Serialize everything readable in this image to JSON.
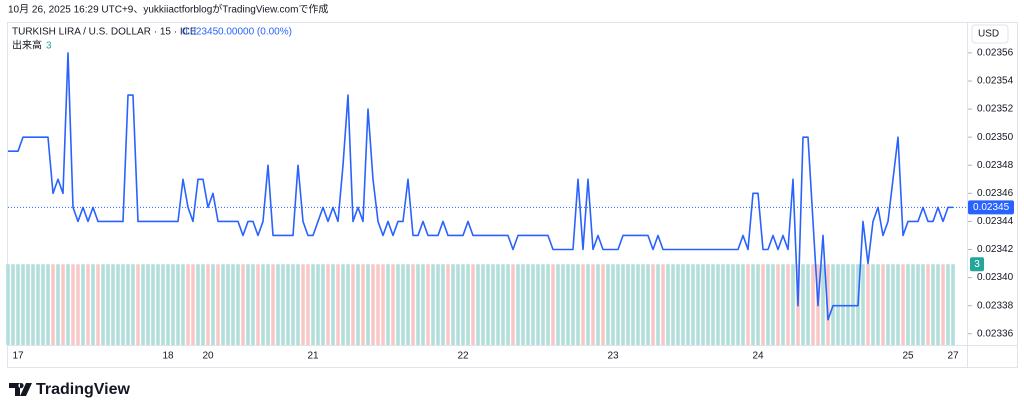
{
  "header": {
    "text": "10月 26, 2025 16:29 UTC+9、yukkiiactforblogがTradingView.comで作成"
  },
  "chart_data": {
    "type": "line",
    "currency": "USD",
    "change": "0.00000 (0.00%)",
    "categories": [
      null,
      null,
      "17",
      null,
      null,
      null,
      null,
      null,
      null,
      null,
      null,
      null,
      null,
      null,
      null,
      null,
      null,
      null,
      null,
      null,
      null,
      null,
      null,
      null,
      null,
      null,
      null,
      null,
      null,
      null,
      null,
      null,
      "18",
      null,
      null,
      null,
      null,
      null,
      null,
      null,
      "20",
      null,
      null,
      null,
      null,
      null,
      null,
      null,
      null,
      null,
      null,
      null,
      null,
      null,
      null,
      null,
      null,
      null,
      null,
      null,
      null,
      "21",
      null,
      null,
      null,
      null,
      null,
      null,
      null,
      null,
      null,
      null,
      null,
      null,
      null,
      null,
      null,
      null,
      null,
      null,
      null,
      null,
      null,
      null,
      null,
      null,
      null,
      null,
      null,
      null,
      null,
      "22",
      null,
      null,
      null,
      null,
      null,
      null,
      null,
      null,
      null,
      null,
      null,
      null,
      null,
      null,
      null,
      null,
      null,
      null,
      null,
      null,
      null,
      null,
      null,
      null,
      null,
      null,
      null,
      null,
      null,
      "23",
      null,
      null,
      null,
      null,
      null,
      null,
      null,
      null,
      null,
      null,
      null,
      null,
      null,
      null,
      null,
      null,
      null,
      null,
      null,
      null,
      null,
      null,
      null,
      null,
      null,
      null,
      null,
      null,
      "24",
      null,
      null,
      null,
      null,
      null,
      null,
      null,
      null,
      null,
      null,
      null,
      null,
      null,
      null,
      null,
      null,
      null,
      null,
      null,
      null,
      null,
      null,
      null,
      null,
      null,
      null,
      null,
      null,
      null,
      "25",
      null,
      null,
      null,
      null,
      null,
      null,
      null,
      null,
      "27"
    ],
    "series": [
      {
        "name": "TURKISH LIRA / U.S. DOLLAR · 15 · ICE",
        "color": "#2962ff",
        "values": [
          0.02349,
          0.02349,
          0.02349,
          0.0235,
          0.0235,
          0.0235,
          0.0235,
          0.0235,
          0.0235,
          0.02346,
          0.02347,
          0.02346,
          0.02356,
          0.02345,
          0.02344,
          0.02345,
          0.02344,
          0.02345,
          0.02344,
          0.02344,
          0.02344,
          0.02344,
          0.02344,
          0.02344,
          0.02353,
          0.02353,
          0.02344,
          0.02344,
          0.02344,
          0.02344,
          0.02344,
          0.02344,
          0.02344,
          0.02344,
          0.02344,
          0.02347,
          0.02345,
          0.02344,
          0.02347,
          0.02347,
          0.02345,
          0.02346,
          0.02344,
          0.02344,
          0.02344,
          0.02344,
          0.02344,
          0.02343,
          0.02344,
          0.02344,
          0.02343,
          0.02344,
          0.02348,
          0.02343,
          0.02343,
          0.02343,
          0.02343,
          0.02343,
          0.02348,
          0.02344,
          0.02343,
          0.02343,
          0.02344,
          0.02345,
          0.02344,
          0.02345,
          0.02344,
          0.02348,
          0.02353,
          0.02344,
          0.02345,
          0.02344,
          0.02352,
          0.02347,
          0.02344,
          0.02343,
          0.02344,
          0.02343,
          0.02344,
          0.02344,
          0.02347,
          0.02343,
          0.02343,
          0.02344,
          0.02343,
          0.02343,
          0.02343,
          0.02344,
          0.02343,
          0.02343,
          0.02343,
          0.02343,
          0.02344,
          0.02343,
          0.02343,
          0.02343,
          0.02343,
          0.02343,
          0.02343,
          0.02343,
          0.02343,
          0.02342,
          0.02343,
          0.02343,
          0.02343,
          0.02343,
          0.02343,
          0.02343,
          0.02343,
          0.02342,
          0.02342,
          0.02342,
          0.02342,
          0.02342,
          0.02347,
          0.02342,
          0.02347,
          0.02342,
          0.02343,
          0.02342,
          0.02342,
          0.02342,
          0.02342,
          0.02343,
          0.02343,
          0.02343,
          0.02343,
          0.02343,
          0.02343,
          0.02342,
          0.02343,
          0.02342,
          0.02342,
          0.02342,
          0.02342,
          0.02342,
          0.02342,
          0.02342,
          0.02342,
          0.02342,
          0.02342,
          0.02342,
          0.02342,
          0.02342,
          0.02342,
          0.02342,
          0.02342,
          0.02343,
          0.02342,
          0.02346,
          0.02346,
          0.02342,
          0.02342,
          0.02343,
          0.02342,
          0.02343,
          0.02342,
          0.02347,
          0.02338,
          0.0235,
          0.0235,
          0.02344,
          0.02338,
          0.02343,
          0.02337,
          0.02338,
          0.02338,
          0.02338,
          0.02338,
          0.02338,
          0.02338,
          0.02344,
          0.02341,
          0.02344,
          0.02345,
          0.02343,
          0.02344,
          0.02347,
          0.0235,
          0.02343,
          0.02344,
          0.02344,
          0.02344,
          0.02345,
          0.02344,
          0.02344,
          0.02345,
          0.02344,
          0.02345,
          0.02345
        ]
      },
      {
        "name": "出来高",
        "axis": "y2",
        "color": "#b2dfdb",
        "down_color": "#f8c8c8",
        "values": [
          3,
          3,
          3,
          3,
          3,
          3,
          3,
          3,
          3,
          3,
          3,
          3,
          3,
          3,
          3,
          3,
          3,
          3,
          3,
          3,
          3,
          3,
          3,
          3,
          3,
          3,
          3,
          3,
          3,
          3,
          3,
          3,
          3,
          3,
          3,
          3,
          3,
          3,
          3,
          3,
          3,
          3,
          3,
          3,
          3,
          3,
          3,
          3,
          3,
          3,
          3,
          3,
          3,
          3,
          3,
          3,
          3,
          3,
          3,
          3,
          3,
          3,
          3,
          3,
          3,
          3,
          3,
          3,
          3,
          3,
          3,
          3,
          3,
          3,
          3,
          3,
          3,
          3,
          3,
          3,
          3,
          3,
          3,
          3,
          3,
          3,
          3,
          3,
          3,
          3,
          3,
          3,
          3,
          3,
          3,
          3,
          3,
          3,
          3,
          3,
          3,
          3,
          3,
          3,
          3,
          3,
          3,
          3,
          3,
          3,
          3,
          3,
          3,
          3,
          3,
          3,
          3,
          3,
          3,
          3,
          3,
          3,
          3,
          3,
          3,
          3,
          3,
          3,
          3,
          3,
          3,
          3,
          3,
          3,
          3,
          3,
          3,
          3,
          3,
          3,
          3,
          3,
          3,
          3,
          3,
          3,
          3,
          3,
          3,
          3,
          3,
          3,
          3,
          3,
          3,
          3,
          3,
          3,
          3,
          3,
          3,
          3,
          3,
          3,
          3,
          3,
          3,
          3,
          3,
          3,
          3,
          3,
          3,
          3,
          3,
          3,
          3,
          3,
          3,
          3,
          3,
          3,
          3,
          3,
          3,
          3,
          3,
          3,
          3,
          3
        ]
      }
    ],
    "ylim": [
      0.023352,
      0.023582
    ],
    "yticks": [
      0.02336,
      0.02338,
      {
        "value": 0.0234,
        "label": "0.02340"
      },
      0.02342,
      0.02344,
      0.02346,
      0.02348,
      {
        "value": 0.0235,
        "label": "0.02350"
      },
      0.02352,
      0.02354,
      0.02356
    ],
    "y2lim": [
      0,
      12
    ]
  },
  "footer": {
    "brand": "TradingView"
  }
}
